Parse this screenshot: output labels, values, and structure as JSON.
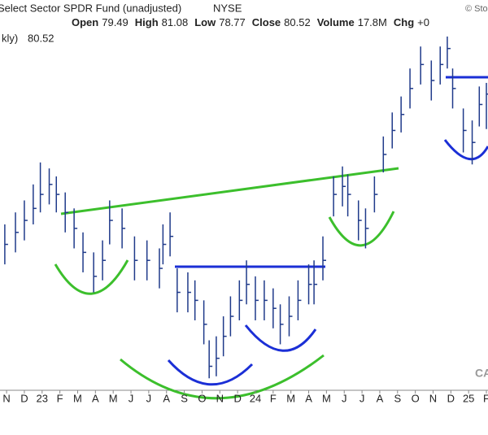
{
  "chart_data": {
    "type": "ohlc",
    "title": "Select Sector SPDR Fund (unadjusted)",
    "exchange": "NYSE",
    "credit": "© Sto",
    "watermark": "CA",
    "quote": [
      {
        "label": "Open",
        "value": 79.49
      },
      {
        "label": "High",
        "value": 81.08
      },
      {
        "label": "Low",
        "value": 78.77
      },
      {
        "label": "Close",
        "value": 80.52
      },
      {
        "label": "Volume",
        "value": "17.8M"
      },
      {
        "label": "Chg",
        "value": "+0"
      }
    ],
    "legend": {
      "label": "kly)",
      "value": 80.52
    },
    "categories": [
      "N",
      "D",
      "23",
      "F",
      "M",
      "A",
      "M",
      "J",
      "J",
      "A",
      "S",
      "O",
      "N",
      "D",
      "24",
      "F",
      "M",
      "A",
      "M",
      "J",
      "J",
      "A",
      "S",
      "O",
      "N",
      "D",
      "25",
      "F"
    ],
    "xlim": [
      -0.37,
      27.09
    ],
    "ylim": [
      65.7,
      83.6
    ],
    "color": "#1f3a8a",
    "bars": {
      "x": [
        -0.1,
        0.5,
        1.0,
        1.5,
        1.9,
        2.4,
        2.8,
        3.3,
        3.8,
        4.3,
        4.9,
        5.4,
        5.8,
        6.5,
        7.2,
        7.9,
        8.6,
        8.8,
        9.2,
        9.6,
        10.2,
        10.6,
        11.1,
        11.4,
        11.8,
        12.2,
        12.6,
        13.1,
        13.5,
        14.0,
        14.5,
        15.0,
        15.4,
        15.9,
        16.4,
        17.0,
        17.3,
        17.8,
        18.4,
        18.9,
        19.2,
        19.8,
        20.2,
        20.7,
        21.2,
        21.7,
        22.2,
        22.7,
        23.3,
        23.9,
        24.4,
        24.8,
        25.1,
        25.7,
        26.2,
        26.6,
        27.0
      ],
      "high": [
        74.0,
        74.6,
        75.2,
        76.0,
        77.1,
        76.8,
        76.4,
        75.6,
        74.8,
        73.6,
        72.6,
        73.2,
        75.2,
        74.8,
        73.4,
        73.2,
        72.8,
        74.0,
        74.6,
        71.8,
        71.6,
        71.2,
        70.2,
        68.2,
        68.4,
        69.4,
        70.4,
        71.2,
        72.2,
        71.4,
        71.2,
        70.8,
        70.0,
        70.4,
        71.2,
        72.0,
        72.2,
        73.4,
        76.4,
        76.9,
        76.5,
        75.2,
        74.8,
        76.4,
        78.4,
        79.6,
        80.4,
        81.8,
        82.9,
        82.2,
        82.9,
        83.4,
        81.8,
        79.8,
        79.2,
        80.9,
        81.08
      ],
      "low": [
        72.0,
        72.6,
        73.2,
        74.0,
        74.6,
        75.0,
        74.6,
        73.6,
        72.8,
        71.6,
        70.6,
        71.2,
        73.0,
        72.8,
        71.2,
        71.2,
        70.8,
        72.0,
        72.4,
        69.6,
        69.6,
        69.2,
        68.0,
        66.3,
        66.4,
        67.4,
        68.4,
        69.2,
        70.0,
        69.2,
        69.2,
        68.8,
        68.0,
        68.4,
        69.2,
        70.0,
        70.0,
        71.2,
        74.4,
        74.9,
        74.4,
        73.2,
        72.8,
        74.6,
        76.6,
        77.8,
        78.6,
        79.8,
        81.0,
        80.2,
        81.0,
        81.8,
        79.8,
        77.6,
        77.0,
        78.9,
        78.77
      ],
      "close": [
        73.0,
        73.6,
        74.2,
        74.8,
        75.5,
        76.0,
        75.5,
        74.6,
        73.8,
        72.6,
        71.4,
        72.2,
        74.2,
        73.8,
        72.2,
        72.2,
        71.8,
        73.0,
        73.4,
        70.6,
        70.6,
        70.2,
        69.0,
        66.9,
        67.3,
        68.4,
        69.4,
        70.2,
        71.0,
        70.2,
        70.2,
        69.8,
        69.0,
        69.4,
        70.2,
        71.0,
        71.0,
        72.2,
        75.5,
        75.9,
        75.5,
        74.2,
        73.8,
        75.5,
        77.5,
        78.7,
        79.5,
        80.8,
        82.0,
        81.2,
        82.0,
        82.8,
        80.8,
        78.7,
        78.1,
        80.0,
        80.52
      ]
    }
  }
}
